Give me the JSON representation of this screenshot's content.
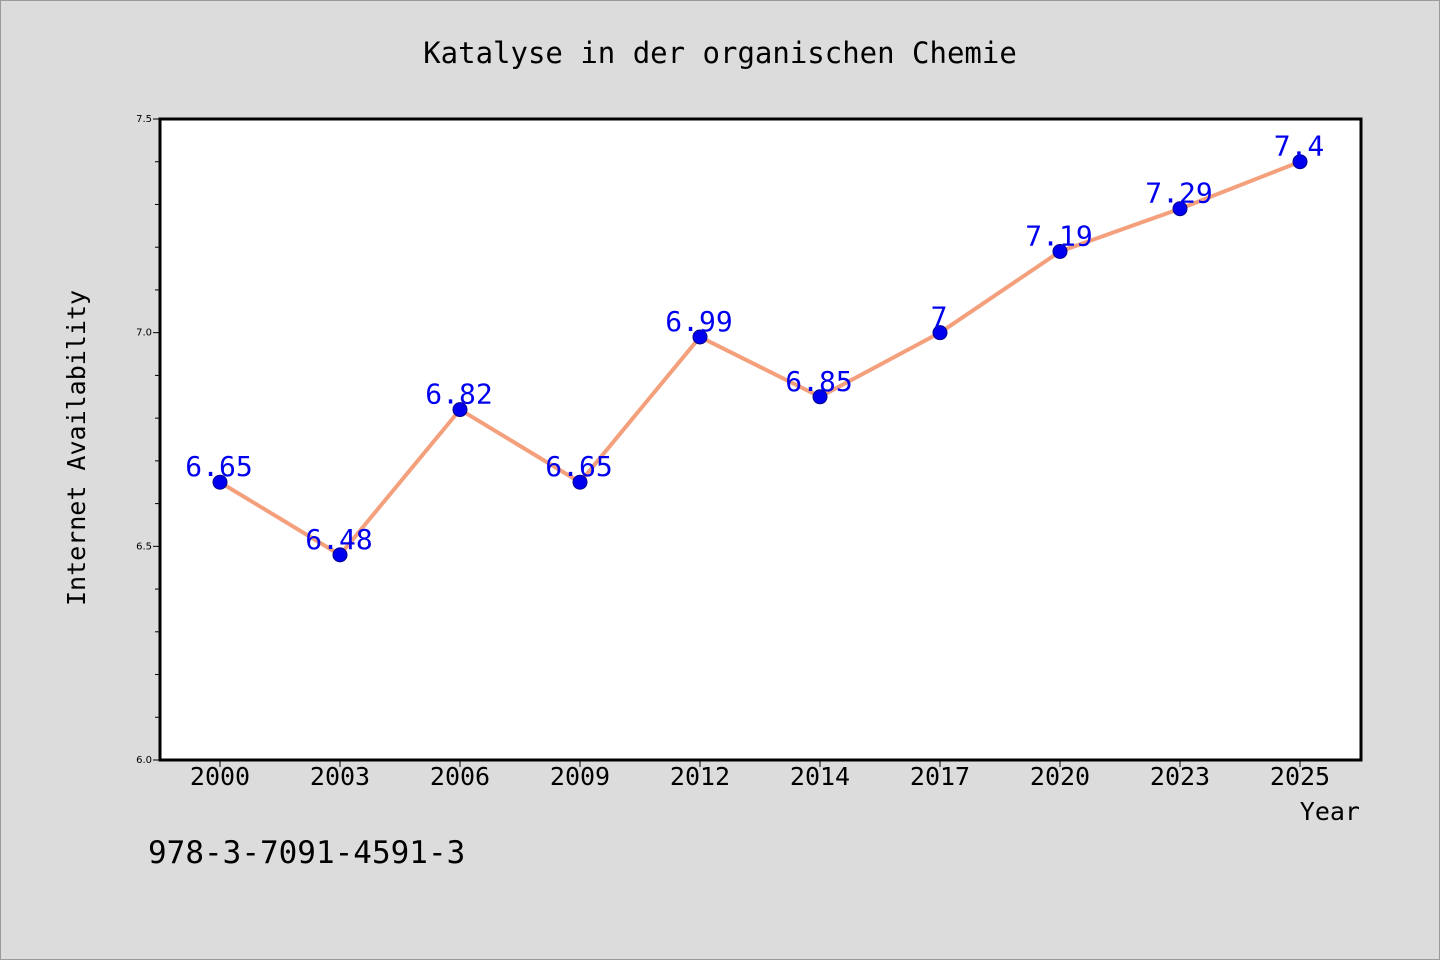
{
  "chart_data": {
    "type": "line",
    "title": "Katalyse in der organischen Chemie",
    "xlabel": "Year",
    "ylabel": "Internet Availability",
    "categories": [
      "2000",
      "2003",
      "2006",
      "2009",
      "2012",
      "2014",
      "2017",
      "2020",
      "2023",
      "2025"
    ],
    "series": [
      {
        "values": [
          6.65,
          6.48,
          6.82,
          6.65,
          6.99,
          6.85,
          7,
          7.19,
          7.29,
          7.4
        ],
        "data_labels": [
          "6.65",
          "6.48",
          "6.82",
          "6.65",
          "6.99",
          "6.85",
          "7",
          "7.19",
          "7.29",
          "7.4"
        ]
      }
    ],
    "ylim": [
      6.0,
      7.5
    ],
    "yticks": [
      "6.0",
      "6.5",
      "7.0",
      "7.5"
    ],
    "grid": false,
    "legend": "none",
    "line_color": "#f4a07c",
    "marker_color": "#0000ee",
    "label_color": "#0000ee"
  },
  "footer": {
    "isbn": "978-3-7091-4591-3"
  }
}
